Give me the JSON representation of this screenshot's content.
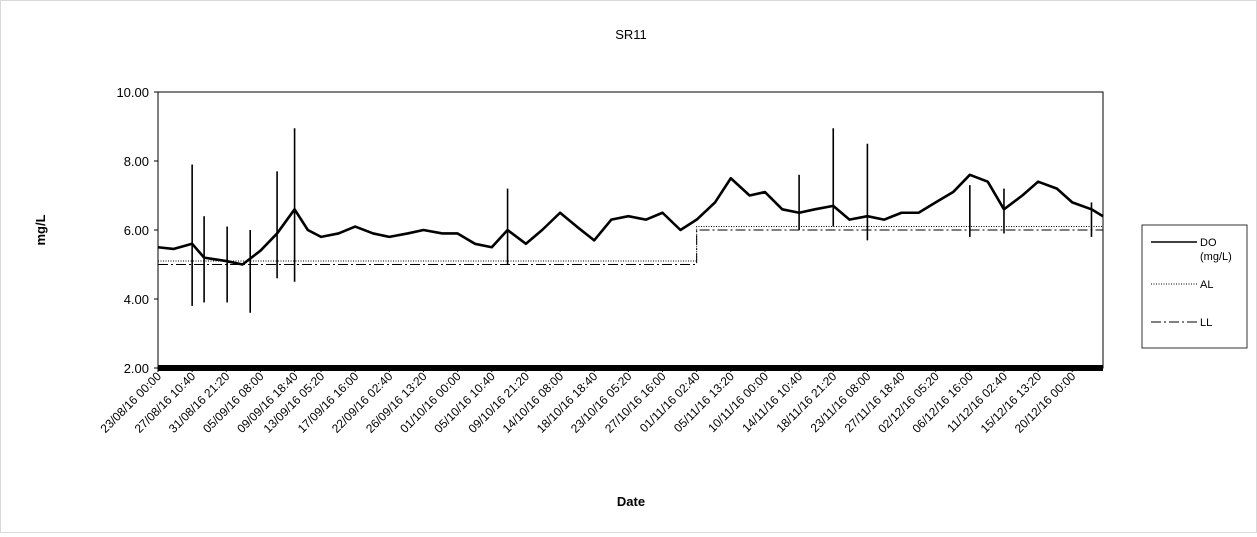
{
  "chart_data": {
    "type": "line",
    "title": "SR11",
    "xlabel": "Date",
    "ylabel": "mg/L",
    "ylim": [
      2.0,
      10.0
    ],
    "y_ticks": [
      "2.00",
      "4.00",
      "6.00",
      "8.00",
      "10.00"
    ],
    "x_range": [
      "23/08/16 00:00",
      "24/12/16 00:00"
    ],
    "x_ticks": [
      "23/08/16 00:00",
      "27/08/16 10:40",
      "31/08/16 21:20",
      "05/09/16 08:00",
      "09/09/16 18:40",
      "13/09/16 05:20",
      "17/09/16 16:00",
      "22/09/16 02:40",
      "26/09/16 13:20",
      "01/10/16 00:00",
      "05/10/16 10:40",
      "09/10/16 21:20",
      "14/10/16 08:00",
      "18/10/16 18:40",
      "23/10/16 05:20",
      "27/10/16 16:00",
      "01/11/16 02:40",
      "05/11/16 13:20",
      "10/11/16 00:00",
      "14/11/16 10:40",
      "18/11/16 21:20",
      "23/11/16 08:00",
      "27/11/16 18:40",
      "02/12/16 05:20",
      "06/12/16 16:00",
      "11/12/16 02:40",
      "15/12/16 13:20",
      "20/12/16 00:00"
    ],
    "grid": false,
    "legend_position": "right",
    "series": [
      {
        "name": "DO (mg/L)",
        "style": "solid",
        "x": [
          "23/08/16 00:00",
          "25/08/16 00:00",
          "27/08/16 10:40",
          "29/08/16 00:00",
          "31/08/16 21:20",
          "03/09/16 00:00",
          "05/09/16 08:00",
          "07/09/16 12:00",
          "09/09/16 18:40",
          "11/09/16 12:00",
          "13/09/16 05:20",
          "15/09/16 12:00",
          "17/09/16 16:00",
          "20/09/16 00:00",
          "22/09/16 02:40",
          "24/09/16 12:00",
          "26/09/16 13:20",
          "29/09/16 00:00",
          "01/10/16 00:00",
          "03/10/16 06:00",
          "05/10/16 10:40",
          "07/10/16 12:00",
          "09/10/16 21:20",
          "12/10/16 00:00",
          "14/10/16 08:00",
          "16/10/16 12:00",
          "18/10/16 18:40",
          "21/10/16 00:00",
          "23/10/16 05:20",
          "25/10/16 12:00",
          "27/10/16 16:00",
          "30/10/16 00:00",
          "01/11/16 02:40",
          "03/11/16 12:00",
          "05/11/16 13:20",
          "08/11/16 00:00",
          "10/11/16 00:00",
          "12/11/16 06:00",
          "14/11/16 10:40",
          "16/11/16 12:00",
          "18/11/16 21:20",
          "21/11/16 00:00",
          "23/11/16 08:00",
          "25/11/16 12:00",
          "27/11/16 18:40",
          "30/11/16 00:00",
          "02/12/16 05:20",
          "04/12/16 12:00",
          "06/12/16 16:00",
          "09/12/16 00:00",
          "11/12/16 02:40",
          "13/12/16 12:00",
          "15/12/16 13:20",
          "18/12/16 00:00",
          "20/12/16 00:00",
          "22/12/16 12:00",
          "24/12/16 00:00"
        ],
        "values": [
          5.5,
          5.45,
          5.6,
          5.2,
          5.1,
          5.0,
          5.4,
          5.9,
          6.6,
          6.0,
          5.8,
          5.9,
          6.1,
          5.9,
          5.8,
          5.9,
          6.0,
          5.9,
          5.9,
          5.6,
          5.5,
          6.0,
          5.6,
          6.0,
          6.5,
          6.1,
          5.7,
          6.3,
          6.4,
          6.3,
          6.5,
          6.0,
          6.3,
          6.8,
          7.5,
          7.0,
          7.1,
          6.6,
          6.5,
          6.6,
          6.7,
          6.3,
          6.4,
          6.3,
          6.5,
          6.5,
          6.8,
          7.1,
          7.6,
          7.4,
          6.6,
          7.0,
          7.4,
          7.2,
          6.8,
          6.6,
          6.4
        ],
        "spikes": [
          {
            "x": "27/08/16 10:40",
            "max": 7.9,
            "min": 3.8
          },
          {
            "x": "29/08/16 00:00",
            "max": 6.4,
            "min": 3.9
          },
          {
            "x": "01/09/16 00:00",
            "max": 6.1,
            "min": 3.9
          },
          {
            "x": "04/09/16 00:00",
            "max": 6.0,
            "min": 3.6
          },
          {
            "x": "07/09/16 12:00",
            "max": 7.7,
            "min": 4.6
          },
          {
            "x": "09/09/16 18:40",
            "max": 8.95,
            "min": 4.5
          },
          {
            "x": "07/10/16 12:00",
            "max": 7.2,
            "min": 5.0
          },
          {
            "x": "14/11/16 10:40",
            "max": 7.6,
            "min": 6.0
          },
          {
            "x": "18/11/16 21:20",
            "max": 8.95,
            "min": 6.1
          },
          {
            "x": "23/11/16 08:00",
            "max": 8.5,
            "min": 5.7
          },
          {
            "x": "06/12/16 16:00",
            "max": 7.3,
            "min": 5.8
          },
          {
            "x": "11/12/16 02:40",
            "max": 7.2,
            "min": 5.9
          },
          {
            "x": "22/12/16 12:00",
            "max": 6.8,
            "min": 5.8
          }
        ]
      },
      {
        "name": "AL",
        "style": "dotted",
        "x": [
          "23/08/16 00:00",
          "01/11/16 02:40",
          "01/11/16 02:40",
          "24/12/16 00:00"
        ],
        "values": [
          5.1,
          5.1,
          6.1,
          6.1
        ]
      },
      {
        "name": "LL",
        "style": "dashdot",
        "x": [
          "23/08/16 00:00",
          "01/11/16 02:40",
          "01/11/16 02:40",
          "24/12/16 00:00"
        ],
        "values": [
          5.0,
          5.0,
          6.0,
          6.0
        ]
      }
    ]
  },
  "legend": {
    "do_label_line1": "DO",
    "do_label_line2": "(mg/L)",
    "al_label": "AL",
    "ll_label": "LL"
  }
}
